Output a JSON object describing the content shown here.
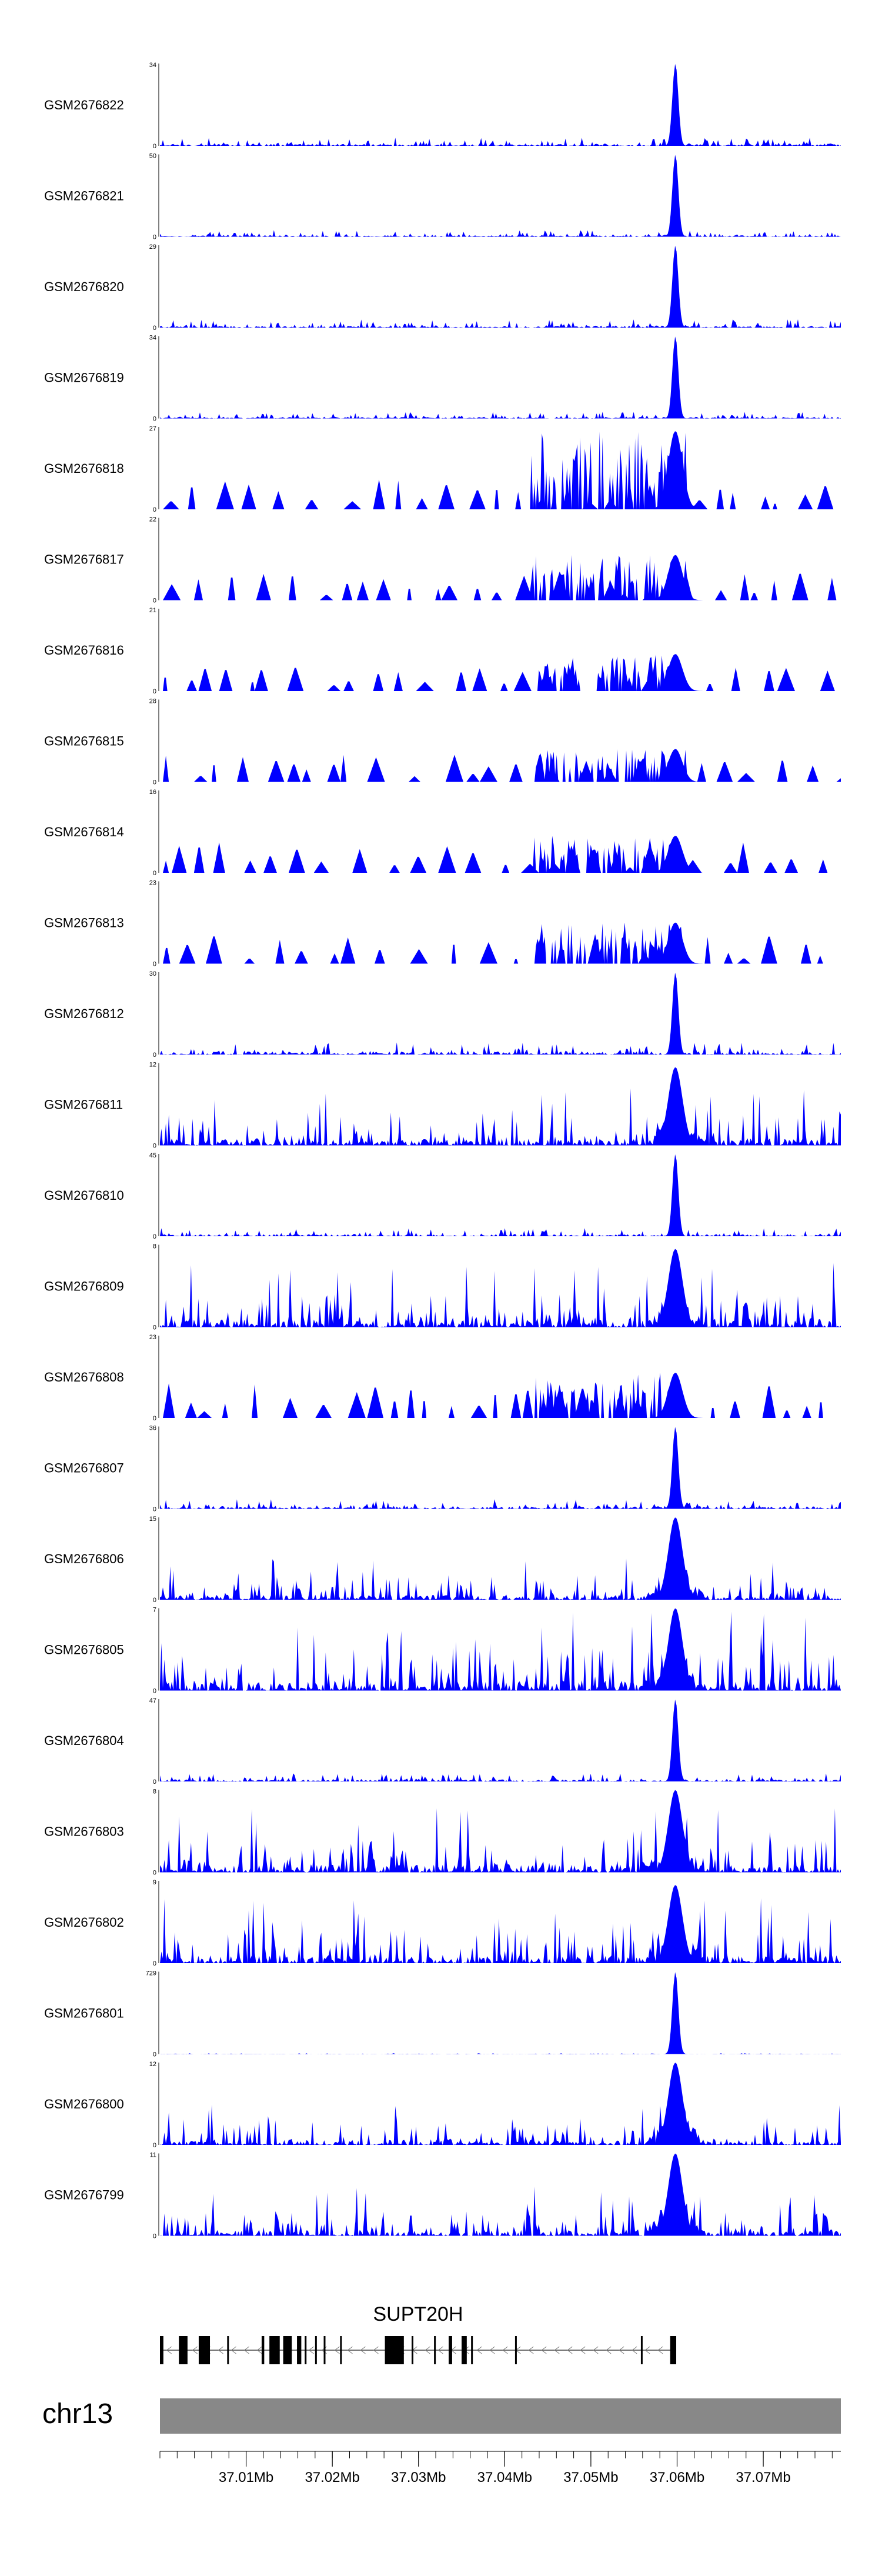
{
  "chart_data": {
    "type": "area",
    "title": "",
    "region": {
      "chrom": "chr13",
      "start_mb": 37.0,
      "end_mb": 37.079
    },
    "signal_color": "#0000ff",
    "peak_position_mb": 37.0598,
    "tracks": [
      {
        "label": "GSM2676822",
        "ymax": 34,
        "pattern": "sharp",
        "peak": 1.0,
        "bg": 0.1,
        "sparse": false
      },
      {
        "label": "GSM2676821",
        "ymax": 50,
        "pattern": "sharp",
        "peak": 1.0,
        "bg": 0.08,
        "sparse": false
      },
      {
        "label": "GSM2676820",
        "ymax": 29,
        "pattern": "sharp",
        "peak": 1.0,
        "bg": 0.1,
        "sparse": false
      },
      {
        "label": "GSM2676819",
        "ymax": 34,
        "pattern": "sharp",
        "peak": 1.0,
        "bg": 0.08,
        "sparse": false
      },
      {
        "label": "GSM2676818",
        "ymax": 27,
        "pattern": "broad",
        "peak": 0.95,
        "bg": 0.35,
        "sparse": true
      },
      {
        "label": "GSM2676817",
        "ymax": 22,
        "pattern": "broad",
        "peak": 0.55,
        "bg": 0.35,
        "sparse": true
      },
      {
        "label": "GSM2676816",
        "ymax": 21,
        "pattern": "broad",
        "peak": 0.45,
        "bg": 0.3,
        "sparse": true
      },
      {
        "label": "GSM2676815",
        "ymax": 28,
        "pattern": "broad",
        "peak": 0.4,
        "bg": 0.3,
        "sparse": true
      },
      {
        "label": "GSM2676814",
        "ymax": 16,
        "pattern": "broad",
        "peak": 0.45,
        "bg": 0.35,
        "sparse": true
      },
      {
        "label": "GSM2676813",
        "ymax": 23,
        "pattern": "broad",
        "peak": 0.5,
        "bg": 0.35,
        "sparse": true
      },
      {
        "label": "GSM2676812",
        "ymax": 30,
        "pattern": "sharp",
        "peak": 1.0,
        "bg": 0.15,
        "sparse": false
      },
      {
        "label": "GSM2676811",
        "ymax": 12,
        "pattern": "mixed",
        "peak": 0.95,
        "bg": 0.35,
        "sparse": false
      },
      {
        "label": "GSM2676810",
        "ymax": 45,
        "pattern": "sharp",
        "peak": 1.0,
        "bg": 0.1,
        "sparse": false
      },
      {
        "label": "GSM2676809",
        "ymax": 8,
        "pattern": "mixed",
        "peak": 0.95,
        "bg": 0.4,
        "sparse": false
      },
      {
        "label": "GSM2676808",
        "ymax": 23,
        "pattern": "broad",
        "peak": 0.55,
        "bg": 0.4,
        "sparse": true
      },
      {
        "label": "GSM2676807",
        "ymax": 36,
        "pattern": "sharp",
        "peak": 1.0,
        "bg": 0.12,
        "sparse": false
      },
      {
        "label": "GSM2676806",
        "ymax": 15,
        "pattern": "mixed",
        "peak": 1.0,
        "bg": 0.25,
        "sparse": false
      },
      {
        "label": "GSM2676805",
        "ymax": 7,
        "pattern": "mixed",
        "peak": 1.0,
        "bg": 0.5,
        "sparse": false
      },
      {
        "label": "GSM2676804",
        "ymax": 47,
        "pattern": "sharp",
        "peak": 1.0,
        "bg": 0.1,
        "sparse": false
      },
      {
        "label": "GSM2676803",
        "ymax": 8,
        "pattern": "mixed",
        "peak": 1.0,
        "bg": 0.4,
        "sparse": false
      },
      {
        "label": "GSM2676802",
        "ymax": 9,
        "pattern": "mixed",
        "peak": 0.95,
        "bg": 0.4,
        "sparse": false
      },
      {
        "label": "GSM2676801",
        "ymax": 729,
        "pattern": "sharp",
        "peak": 1.0,
        "bg": 0.01,
        "sparse": false
      },
      {
        "label": "GSM2676800",
        "ymax": 12,
        "pattern": "mixed",
        "peak": 1.0,
        "bg": 0.25,
        "sparse": false
      },
      {
        "label": "GSM2676799",
        "ymax": 11,
        "pattern": "mixed",
        "peak": 1.0,
        "bg": 0.3,
        "sparse": false
      }
    ],
    "gene": {
      "name": "SUPT20H",
      "start_mb": 37.0,
      "end_mb": 37.0599,
      "strand": "-",
      "exons_mb": [
        [
          37.0,
          37.0004
        ],
        [
          37.0022,
          37.0032
        ],
        [
          37.0045,
          37.0058
        ],
        [
          37.0078,
          37.008
        ],
        [
          37.0118,
          37.0121
        ],
        [
          37.0127,
          37.0139
        ],
        [
          37.0143,
          37.0153
        ],
        [
          37.0159,
          37.0164
        ],
        [
          37.0168,
          37.017
        ],
        [
          37.018,
          37.0182
        ],
        [
          37.019,
          37.0192
        ],
        [
          37.0209,
          37.0211
        ],
        [
          37.0261,
          37.0283
        ],
        [
          37.0292,
          37.0294
        ],
        [
          37.0318,
          37.032
        ],
        [
          37.0335,
          37.0339
        ],
        [
          37.035,
          37.0356
        ],
        [
          37.0361,
          37.0363
        ],
        [
          37.0412,
          37.0413
        ],
        [
          37.0558,
          37.056
        ],
        [
          37.0592,
          37.0599
        ]
      ]
    },
    "axis": {
      "chrom_label": "chr13",
      "ticks_mb": [
        37.01,
        37.02,
        37.03,
        37.04,
        37.05,
        37.06,
        37.07
      ],
      "tick_labels": [
        "37.01Mb",
        "37.02Mb",
        "37.03Mb",
        "37.04Mb",
        "37.05Mb",
        "37.06Mb",
        "37.07Mb"
      ],
      "minor_tick_step_mb": 0.002,
      "ideogram_color": "#888888"
    }
  }
}
